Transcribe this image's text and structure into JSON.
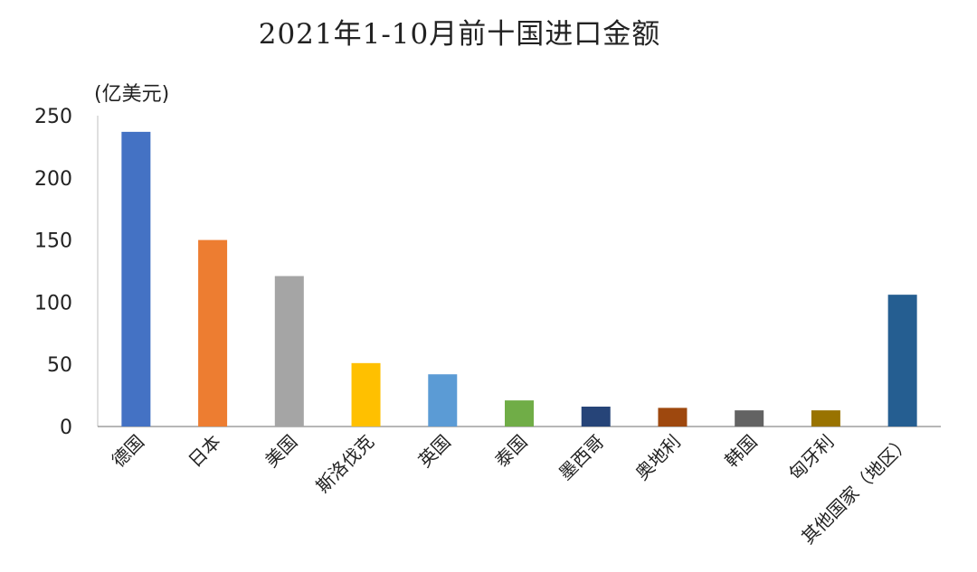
{
  "chart_data": {
    "type": "bar",
    "title": "2021年1-10月前十国进口金额",
    "ylabel": "(亿美元)",
    "xlabel": "",
    "ylim": [
      0,
      250
    ],
    "yticks": [
      0,
      50,
      100,
      150,
      200,
      250
    ],
    "grid": false,
    "legend": "none",
    "categories": [
      "德国",
      "日本",
      "美国",
      "斯洛伐克",
      "英国",
      "泰国",
      "墨西哥",
      "奥地利",
      "韩国",
      "匈牙利",
      "其他国家（地区）"
    ],
    "values": [
      237,
      150,
      121,
      51,
      42,
      21,
      16,
      15,
      13,
      13,
      106
    ],
    "colors": [
      "#4472C4",
      "#ED7D31",
      "#A5A5A5",
      "#FFC000",
      "#5B9BD5",
      "#70AD47",
      "#264478",
      "#9E480E",
      "#636363",
      "#997300",
      "#255E91"
    ]
  }
}
